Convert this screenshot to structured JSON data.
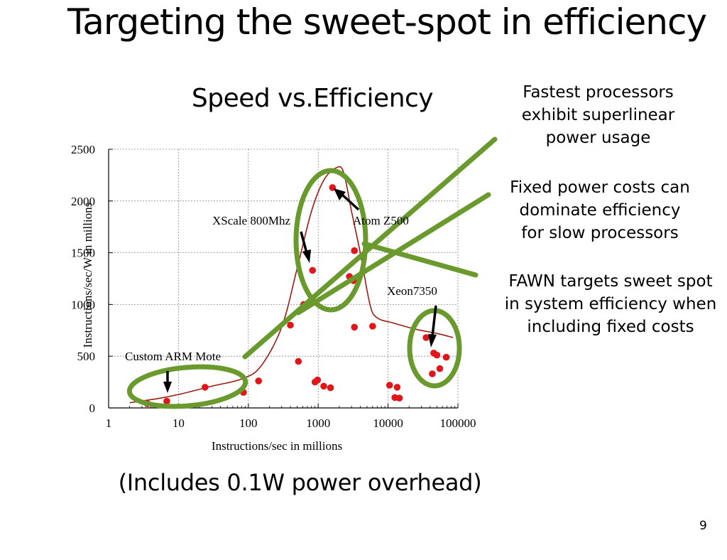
{
  "slide": {
    "title": "Targeting the sweet-spot in efficiency",
    "notes": [
      "Fastest processors\nexhibit superlinear\npower usage",
      "Fixed power costs can\ndominate efficiency\nfor slow processors",
      "FAWN targets sweet spot\nin system efficiency when\nincluding fixed costs"
    ],
    "footnote": "(Includes 0.1W power overhead)",
    "page_number": "9"
  },
  "colors": {
    "points": "#e0161b",
    "curve": "#9b1c14",
    "highlight": "#6a9a2e",
    "grid": "#888888"
  },
  "chart_data": {
    "type": "scatter",
    "title": "Speed vs.Efficiency",
    "xlabel": "Instructions/sec in millions",
    "ylabel": "Instructions/sec/W in millions",
    "xscale": "log",
    "xlim": [
      1,
      100000
    ],
    "ylim": [
      0,
      2500
    ],
    "x_ticks": [
      "1",
      "10",
      "100",
      "1000",
      "10000",
      "100000"
    ],
    "y_ticks": [
      "0",
      "500",
      "1000",
      "1500",
      "2000",
      "2500"
    ],
    "grid": true,
    "series": [
      {
        "points": [
          [
            3.6,
            40
          ],
          [
            6.8,
            65
          ],
          [
            24,
            200
          ],
          [
            85,
            150
          ],
          [
            140,
            260
          ],
          [
            400,
            800
          ],
          [
            520,
            450
          ],
          [
            620,
            1000
          ],
          [
            830,
            1330
          ],
          [
            900,
            250
          ],
          [
            980,
            270
          ],
          [
            1200,
            210
          ],
          [
            1500,
            195
          ],
          [
            1600,
            2130
          ],
          [
            2800,
            1270
          ],
          [
            3200,
            1230
          ],
          [
            3300,
            1520
          ],
          [
            3300,
            780
          ],
          [
            6000,
            790
          ],
          [
            10500,
            220
          ],
          [
            12500,
            100
          ],
          [
            13500,
            200
          ],
          [
            14500,
            95
          ],
          [
            35000,
            680
          ],
          [
            43000,
            330
          ],
          [
            45000,
            530
          ],
          [
            50000,
            510
          ],
          [
            55000,
            380
          ],
          [
            68000,
            490
          ]
        ]
      }
    ],
    "fit_curve": [
      [
        2,
        50
      ],
      [
        5,
        90
      ],
      [
        10,
        130
      ],
      [
        30,
        210
      ],
      [
        80,
        280
      ],
      [
        150,
        400
      ],
      [
        300,
        780
      ],
      [
        500,
        1350
      ],
      [
        800,
        1900
      ],
      [
        1200,
        2200
      ],
      [
        1800,
        2320
      ],
      [
        2300,
        2280
      ],
      [
        3000,
        1900
      ],
      [
        4000,
        1500
      ],
      [
        5500,
        1000
      ],
      [
        7000,
        870
      ],
      [
        12000,
        820
      ],
      [
        25000,
        760
      ],
      [
        50000,
        720
      ],
      [
        85000,
        680
      ]
    ],
    "annotations": [
      {
        "label": "XScale 800Mhz",
        "x": 830,
        "y": 1330
      },
      {
        "label": "Atom Z500",
        "x": 1600,
        "y": 2130
      },
      {
        "label": "Xeon7350",
        "x": 45000,
        "y": 530
      },
      {
        "label": "Custom ARM Mote",
        "x": 6.8,
        "y": 65
      }
    ]
  }
}
